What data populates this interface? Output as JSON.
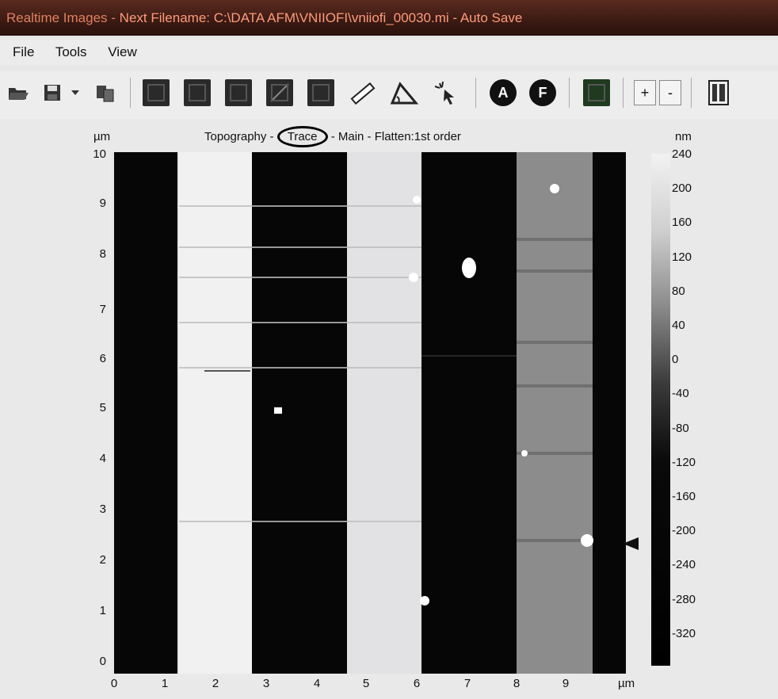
{
  "window": {
    "title_prefix": "Realtime Images - ",
    "title_rest": "Next Filename: C:\\DATA AFM\\VNIIOFI\\vniiofi_00030.mi - Auto Save"
  },
  "menu": [
    "File",
    "Tools",
    "View"
  ],
  "toolbar_icons": [
    "open-folder-icon",
    "save-icon",
    "dropdown-arrow-icon",
    "copy-icon",
    "scan-image-icon",
    "line-profile-icon",
    "zoom-region-icon",
    "diagonal-line-icon",
    "region-select-icon",
    "ruler-icon",
    "angle-measure-icon",
    "cursor-sparkle-icon",
    "A",
    "F",
    "grid-toggle-icon",
    "+",
    "-",
    "spectrum-panel-icon"
  ],
  "image": {
    "title_left": "Topography - ",
    "title_highlight": "Trace",
    "title_right": " - Main  -  Flatten:1st order",
    "y_unit": "µm",
    "x_unit": "µm",
    "y_ticks": [
      "10",
      "9",
      "8",
      "7",
      "6",
      "5",
      "4",
      "3",
      "2",
      "1",
      "0"
    ],
    "x_ticks": [
      "0",
      "1",
      "2",
      "3",
      "4",
      "5",
      "6",
      "7",
      "8",
      "9"
    ]
  },
  "colorbar": {
    "unit": "nm",
    "ticks": [
      "240",
      "200",
      "160",
      "120",
      "80",
      "40",
      "0",
      "-40",
      "-80",
      "-120",
      "-160",
      "-200",
      "-240",
      "-280",
      "-320"
    ]
  }
}
